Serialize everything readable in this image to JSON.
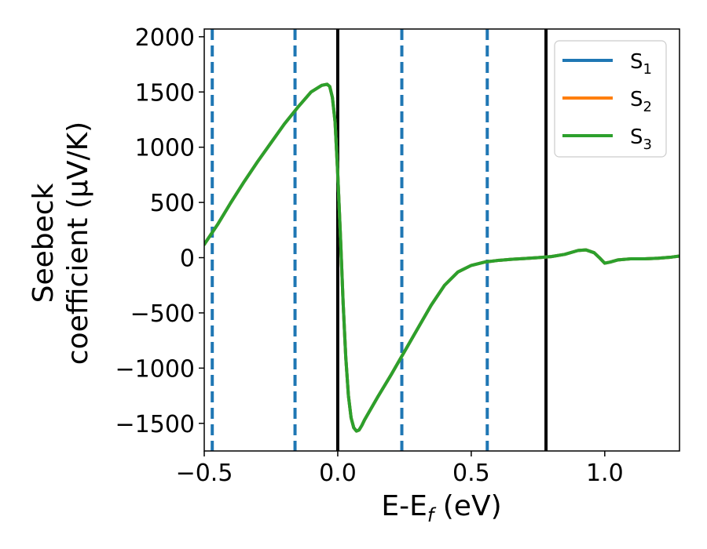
{
  "chart_data": {
    "type": "line",
    "xlabel_main": "E-E",
    "xlabel_sub": "f",
    "xlabel_unit": " (eV)",
    "ylabel_line1": "Seebeck",
    "ylabel_line2": "coefficient  (μV/K)",
    "xlim": [
      -0.5,
      1.28
    ],
    "ylim": [
      -1750,
      2070
    ],
    "x_ticks": [
      -0.5,
      0.0,
      0.5,
      1.0
    ],
    "x_tick_labels": [
      "−0.5",
      "0.0",
      "0.5",
      "1.0"
    ],
    "y_ticks": [
      -1500,
      -1000,
      -500,
      0,
      500,
      1000,
      1500,
      2000
    ],
    "y_tick_labels": [
      "−1500",
      "−1000",
      "−500",
      "0",
      "500",
      "1000",
      "1500",
      "2000"
    ],
    "legend_position": "top-right",
    "series": [
      {
        "name": "S",
        "sub": "1",
        "color": "#1f77b4"
      },
      {
        "name": "S",
        "sub": "2",
        "color": "#ff7f0e"
      },
      {
        "name": "S",
        "sub": "3",
        "color": "#2ca02c"
      }
    ],
    "x": [
      -0.5,
      -0.45,
      -0.4,
      -0.35,
      -0.3,
      -0.25,
      -0.2,
      -0.15,
      -0.1,
      -0.06,
      -0.04,
      -0.03,
      -0.02,
      -0.01,
      0.0,
      0.01,
      0.02,
      0.03,
      0.04,
      0.05,
      0.06,
      0.07,
      0.08,
      0.09,
      0.1,
      0.15,
      0.2,
      0.25,
      0.3,
      0.35,
      0.4,
      0.45,
      0.5,
      0.55,
      0.6,
      0.65,
      0.7,
      0.75,
      0.8,
      0.85,
      0.9,
      0.93,
      0.96,
      0.98,
      1.0,
      1.02,
      1.05,
      1.1,
      1.15,
      1.2,
      1.25,
      1.28
    ],
    "y": [
      120,
      300,
      500,
      690,
      870,
      1040,
      1210,
      1360,
      1500,
      1560,
      1570,
      1550,
      1450,
      1230,
      760,
      200,
      -400,
      -900,
      -1250,
      -1450,
      -1540,
      -1570,
      -1560,
      -1520,
      -1470,
      -1260,
      -1060,
      -850,
      -640,
      -430,
      -250,
      -130,
      -70,
      -40,
      -25,
      -15,
      -8,
      0,
      10,
      30,
      65,
      70,
      45,
      0,
      -50,
      -40,
      -20,
      -10,
      -10,
      -5,
      5,
      15
    ],
    "reference_lines": [
      {
        "x": -0.47,
        "style": "dashed",
        "color": "#1f77b4"
      },
      {
        "x": -0.16,
        "style": "dashed",
        "color": "#1f77b4"
      },
      {
        "x": 0.0,
        "style": "solid",
        "color": "#000000"
      },
      {
        "x": 0.24,
        "style": "dashed",
        "color": "#1f77b4"
      },
      {
        "x": 0.56,
        "style": "dashed",
        "color": "#1f77b4"
      },
      {
        "x": 0.78,
        "style": "solid",
        "color": "#000000"
      }
    ]
  }
}
